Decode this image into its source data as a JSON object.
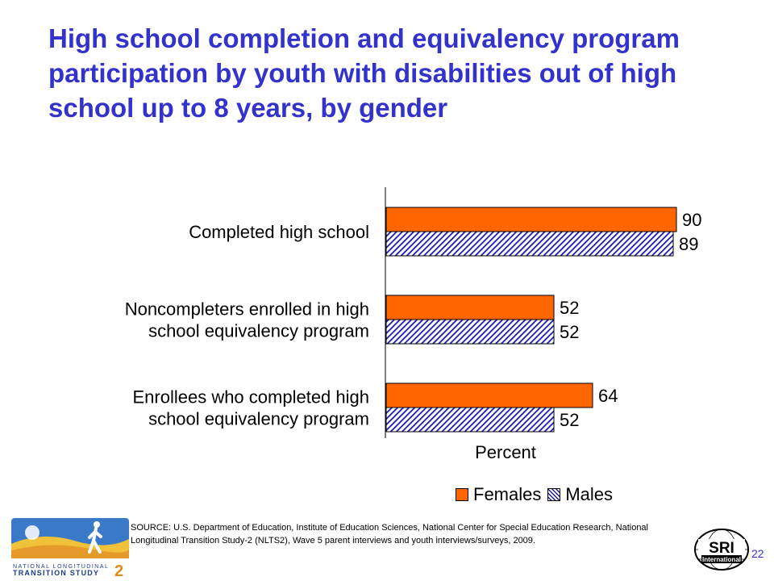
{
  "title": "High school completion and equivalency program participation by youth with disabilities out of high school up to 8 years, by gender",
  "chart_data": {
    "type": "bar",
    "orientation": "horizontal",
    "categories": [
      [
        "Completed high school"
      ],
      [
        "Noncompleters enrolled in high",
        "school equivalency program"
      ],
      [
        "Enrollees who completed high",
        "school equivalency program"
      ]
    ],
    "series": [
      {
        "name": "Females",
        "values": [
          90,
          52,
          64
        ],
        "color": "#ff6600",
        "fill": "solid"
      },
      {
        "name": "Males",
        "values": [
          89,
          52,
          52
        ],
        "color": "#1c1ca8",
        "fill": "diagonal-hatch"
      }
    ],
    "xlabel": "Percent",
    "xlim": [
      0,
      100
    ],
    "legend_position": "bottom-right",
    "grid": false
  },
  "legend": {
    "females": "Females",
    "males": "Males"
  },
  "source": "SOURCE: U.S. Department of Education, Institute of Education Sciences, National Center for Special Education Research, National Longitudinal Transition Study-2 (NLTS2), Wave 5 parent interviews and youth interviews/surveys, 2009.",
  "page_number": "22",
  "logos": {
    "nlts": {
      "line1": "NATIONAL LONGITUDINAL",
      "line2": "TRANSITION STUDY",
      "digit": "2"
    },
    "sri": {
      "line1": "SRI",
      "line2": "International"
    }
  }
}
